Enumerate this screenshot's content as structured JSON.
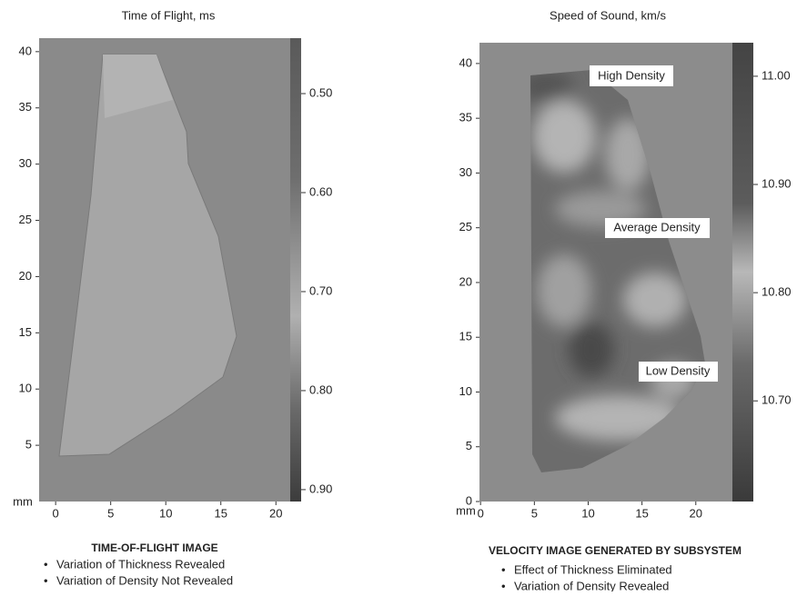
{
  "chart_data": [
    {
      "type": "image",
      "title": "Time of Flight, ms",
      "axis_unit": "mm",
      "xlim": [
        -1.5,
        21.3
      ],
      "xticks": [
        0,
        5,
        10,
        15,
        20
      ],
      "ylim": [
        0,
        41.2
      ],
      "yticks": [
        5,
        10,
        15,
        20,
        25,
        30,
        35,
        40
      ],
      "colorbar_lim": [
        0.912,
        0.444
      ],
      "colorbar_ticks": [
        {
          "value": 0.5,
          "label": "0.50"
        },
        {
          "value": 0.6,
          "label": "0.60"
        },
        {
          "value": 0.7,
          "label": "0.70"
        },
        {
          "value": 0.8,
          "label": "0.80"
        },
        {
          "value": 0.9,
          "label": "0.90"
        }
      ],
      "caption": "TIME-OF-FLIGHT IMAGE",
      "bullets": [
        "Variation of Thickness Revealed",
        "Variation of Density Not Revealed"
      ]
    },
    {
      "type": "image",
      "title": "Speed of Sound, km/s",
      "axis_unit": "mm",
      "xlim": [
        -0.1,
        23.4
      ],
      "xticks": [
        0,
        5,
        10,
        15,
        20
      ],
      "ylim": [
        0,
        41.9
      ],
      "yticks": [
        0,
        5,
        10,
        15,
        20,
        25,
        30,
        35,
        40
      ],
      "colorbar_lim": [
        10.607,
        11.031
      ],
      "colorbar_ticks": [
        {
          "value": 10.7,
          "label": "10.70"
        },
        {
          "value": 10.8,
          "label": "10.80"
        },
        {
          "value": 10.9,
          "label": "10.90"
        },
        {
          "value": 11.0,
          "label": "11.00"
        }
      ],
      "annotations": [
        "High Density",
        "Average Density",
        "Low Density"
      ],
      "caption": "VELOCITY IMAGE GENERATED BY SUBSYSTEM",
      "bullets": [
        "Effect of Thickness Eliminated",
        "Variation of Density Revealed"
      ]
    }
  ]
}
